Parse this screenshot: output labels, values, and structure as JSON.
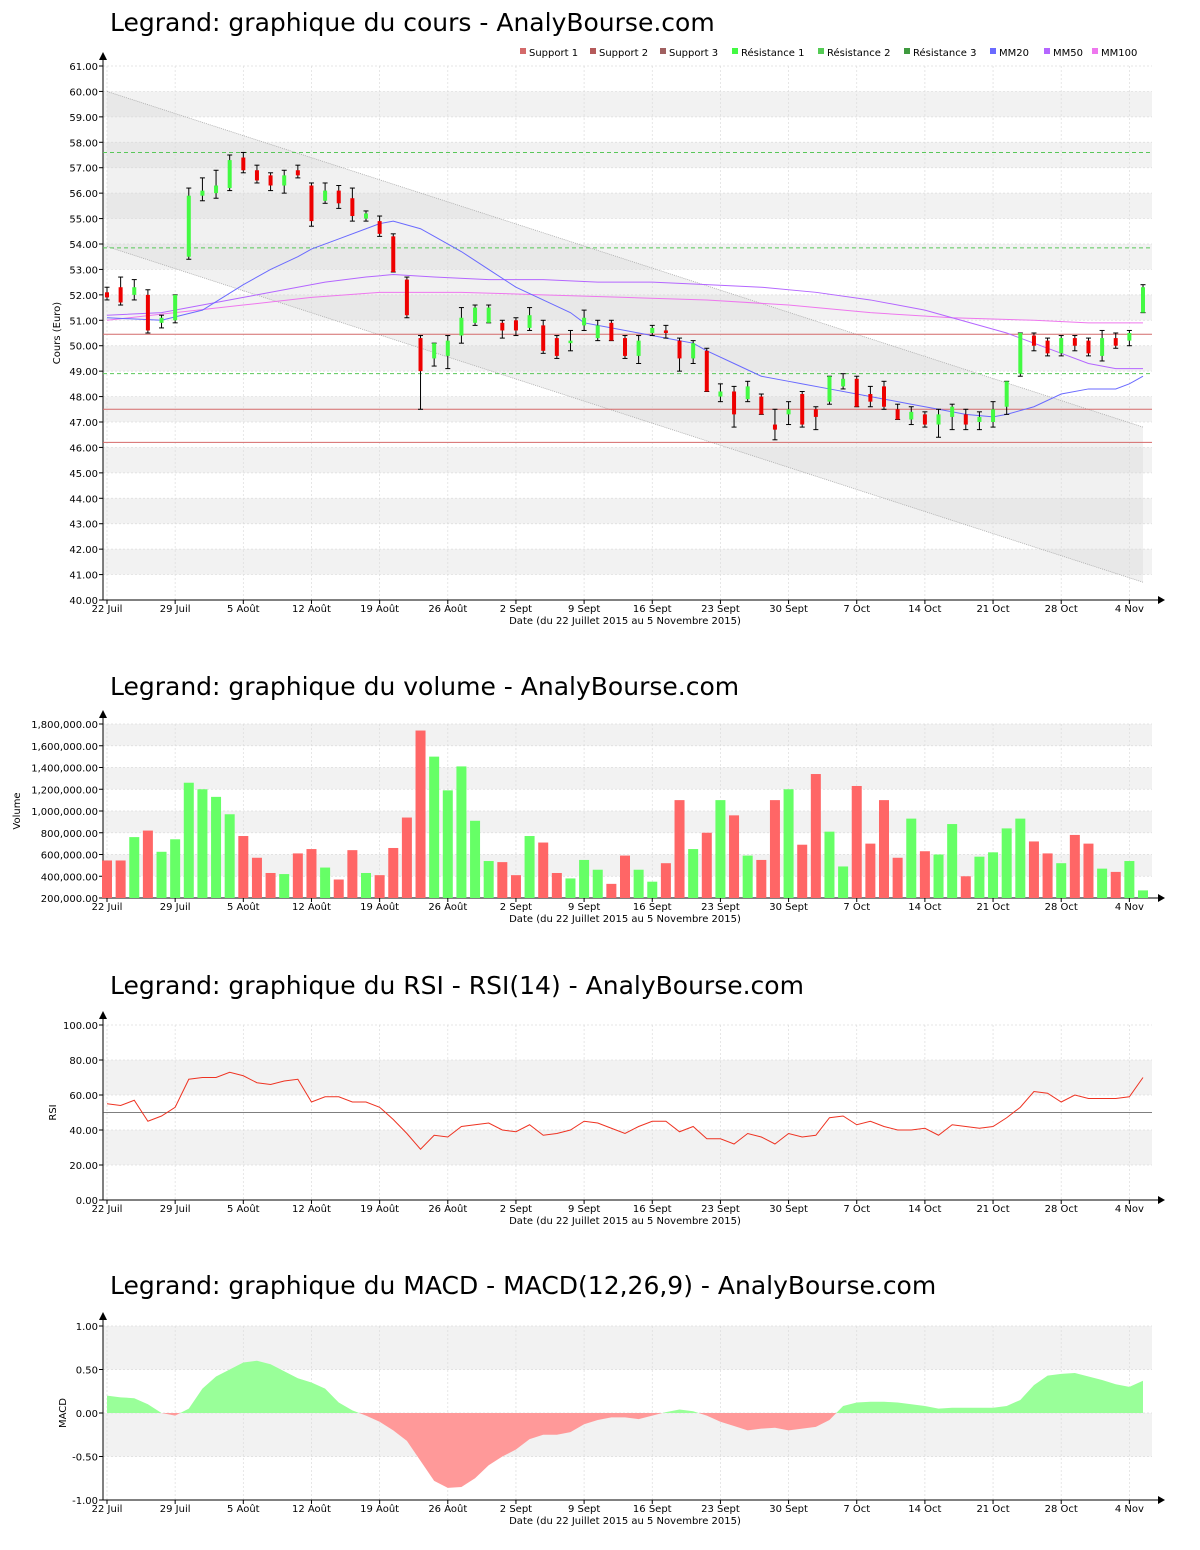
{
  "colors": {
    "up": "#43fa43",
    "down": "#ee0000",
    "vol_up": "#66ff66",
    "vol_down": "#ff6666",
    "band": "#f2f2f2",
    "grid": "#dcdcdc",
    "support": "#d46a6a",
    "resistance": "#59c759",
    "mm20": "#6a6aff",
    "mm50": "#b466ff",
    "mm100": "#ee77ee",
    "rsi": "#ee3322",
    "macd_pos": "#99ff99",
    "macd_neg": "#ff9999"
  },
  "shared": {
    "x_ticks": [
      "22 Juil",
      "29 Juil",
      "5 Août",
      "12 Août",
      "19 Août",
      "26 Août",
      "2 Sept",
      "9 Sept",
      "16 Sept",
      "23 Sept",
      "30 Sept",
      "7 Oct",
      "14 Oct",
      "21 Oct",
      "28 Oct",
      "4 Nov"
    ],
    "x_label": "Date (du 22 Juillet 2015 au 5 Novembre 2015)"
  },
  "titles": {
    "price": "Legrand: graphique du cours - AnalyBourse.com",
    "volume": "Legrand: graphique du volume - AnalyBourse.com",
    "rsi": "Legrand: graphique du RSI - RSI(14) - AnalyBourse.com",
    "macd": "Legrand: graphique du MACD - MACD(12,26,9) - AnalyBourse.com"
  },
  "chart_data": [
    {
      "id": "price",
      "type": "candlestick",
      "ylabel": "Cours (Euro)",
      "ylim": [
        40,
        61
      ],
      "y_ticks": [
        "40.00",
        "41.00",
        "42.00",
        "43.00",
        "44.00",
        "45.00",
        "46.00",
        "47.00",
        "48.00",
        "49.00",
        "50.00",
        "51.00",
        "52.00",
        "53.00",
        "54.00",
        "55.00",
        "56.00",
        "57.00",
        "58.00",
        "59.00",
        "60.00",
        "61.00"
      ],
      "legend": [
        "Support 1",
        "Support 2",
        "Support 3",
        "Résistance 1",
        "Résistance 2",
        "Résistance 3",
        "MM20",
        "MM50",
        "MM100"
      ],
      "support_levels": [
        50.45,
        47.5,
        46.2
      ],
      "resistance_levels": [
        48.9,
        53.85,
        57.6
      ],
      "ohlc": [
        [
          52.1,
          52.3,
          51.8,
          51.9
        ],
        [
          52.3,
          52.7,
          51.6,
          51.7
        ],
        [
          52.0,
          52.6,
          51.8,
          52.3
        ],
        [
          52.0,
          52.2,
          50.5,
          50.6
        ],
        [
          50.9,
          51.2,
          50.7,
          51.1
        ],
        [
          51.0,
          52.0,
          50.9,
          52.0
        ],
        [
          53.5,
          56.2,
          53.4,
          55.9
        ],
        [
          55.9,
          56.6,
          55.7,
          56.1
        ],
        [
          56.0,
          56.9,
          55.8,
          56.3
        ],
        [
          56.2,
          57.5,
          56.1,
          57.3
        ],
        [
          57.4,
          57.6,
          56.8,
          56.9
        ],
        [
          56.9,
          57.1,
          56.4,
          56.5
        ],
        [
          56.7,
          56.8,
          56.1,
          56.3
        ],
        [
          56.3,
          56.9,
          56.0,
          56.7
        ],
        [
          56.9,
          57.1,
          56.6,
          56.7
        ],
        [
          56.3,
          56.4,
          54.7,
          54.9
        ],
        [
          55.7,
          56.4,
          55.6,
          56.1
        ],
        [
          56.1,
          56.3,
          55.4,
          55.6
        ],
        [
          55.8,
          56.2,
          54.9,
          55.1
        ],
        [
          55.0,
          55.3,
          54.9,
          55.2
        ],
        [
          54.9,
          55.1,
          54.3,
          54.4
        ],
        [
          54.3,
          54.4,
          52.9,
          52.9
        ],
        [
          52.6,
          52.7,
          51.1,
          51.2
        ],
        [
          50.3,
          50.4,
          47.5,
          49.0
        ],
        [
          49.5,
          50.1,
          49.2,
          50.1
        ],
        [
          49.6,
          50.4,
          49.1,
          50.2
        ],
        [
          50.4,
          51.5,
          50.1,
          51.1
        ],
        [
          50.9,
          51.6,
          50.8,
          51.5
        ],
        [
          50.9,
          51.6,
          50.9,
          51.5
        ],
        [
          50.9,
          51.0,
          50.3,
          50.6
        ],
        [
          51.0,
          51.1,
          50.4,
          50.6
        ],
        [
          50.7,
          51.5,
          50.6,
          51.2
        ],
        [
          50.8,
          51.0,
          49.7,
          49.8
        ],
        [
          50.3,
          50.4,
          49.5,
          49.6
        ],
        [
          50.1,
          50.6,
          49.8,
          50.2
        ],
        [
          50.8,
          51.4,
          50.6,
          51.1
        ],
        [
          50.3,
          51.0,
          50.2,
          50.8
        ],
        [
          50.9,
          51.0,
          50.2,
          50.2
        ],
        [
          50.3,
          50.4,
          49.5,
          49.6
        ],
        [
          49.6,
          50.4,
          49.3,
          50.2
        ],
        [
          50.5,
          50.8,
          50.4,
          50.7
        ],
        [
          50.6,
          50.8,
          50.3,
          50.5
        ],
        [
          50.2,
          50.3,
          49.0,
          49.5
        ],
        [
          49.5,
          50.2,
          49.3,
          50.1
        ],
        [
          49.8,
          49.9,
          48.2,
          48.2
        ],
        [
          48.0,
          48.5,
          47.8,
          48.2
        ],
        [
          48.2,
          48.4,
          46.8,
          47.3
        ],
        [
          47.9,
          48.6,
          47.8,
          48.4
        ],
        [
          48.0,
          48.1,
          47.3,
          47.3
        ],
        [
          46.9,
          47.5,
          46.3,
          46.7
        ],
        [
          47.3,
          47.8,
          46.9,
          47.5
        ],
        [
          48.1,
          48.2,
          46.8,
          46.9
        ],
        [
          47.5,
          47.6,
          46.7,
          47.2
        ],
        [
          47.8,
          48.8,
          47.7,
          48.8
        ],
        [
          48.4,
          48.9,
          48.3,
          48.7
        ],
        [
          48.7,
          48.8,
          47.6,
          47.6
        ],
        [
          48.1,
          48.4,
          47.6,
          47.8
        ],
        [
          48.4,
          48.6,
          47.5,
          47.6
        ],
        [
          47.5,
          47.7,
          47.1,
          47.1
        ],
        [
          47.1,
          47.6,
          46.9,
          47.4
        ],
        [
          47.3,
          47.4,
          46.8,
          46.9
        ],
        [
          46.9,
          47.5,
          46.4,
          47.3
        ],
        [
          47.2,
          47.7,
          46.7,
          47.6
        ],
        [
          47.3,
          47.5,
          46.7,
          46.9
        ],
        [
          47.0,
          47.4,
          46.7,
          47.2
        ],
        [
          47.0,
          47.8,
          46.8,
          47.5
        ],
        [
          47.6,
          48.6,
          47.3,
          48.6
        ],
        [
          48.9,
          50.5,
          48.8,
          50.5
        ],
        [
          50.4,
          50.5,
          49.8,
          50.0
        ],
        [
          50.2,
          50.3,
          49.6,
          49.7
        ],
        [
          49.7,
          50.4,
          49.6,
          50.3
        ],
        [
          50.3,
          50.4,
          49.8,
          50.0
        ],
        [
          50.2,
          50.3,
          49.6,
          49.7
        ],
        [
          49.6,
          50.6,
          49.4,
          50.3
        ],
        [
          50.3,
          50.5,
          49.9,
          50.0
        ],
        [
          50.2,
          50.6,
          50.0,
          50.5
        ],
        [
          51.3,
          52.4,
          51.3,
          52.3
        ]
      ],
      "mm20": [
        [
          0,
          51.1
        ],
        [
          4,
          51.0
        ],
        [
          7,
          51.4
        ],
        [
          10,
          52.4
        ],
        [
          12,
          53.0
        ],
        [
          14,
          53.5
        ],
        [
          15,
          53.8
        ],
        [
          17,
          54.2
        ],
        [
          19,
          54.6
        ],
        [
          20,
          54.8
        ],
        [
          21,
          54.9
        ],
        [
          23,
          54.6
        ],
        [
          24,
          54.3
        ],
        [
          26,
          53.7
        ],
        [
          28,
          53.0
        ],
        [
          30,
          52.3
        ],
        [
          32,
          51.8
        ],
        [
          34,
          51.3
        ],
        [
          35,
          50.9
        ],
        [
          37,
          50.7
        ],
        [
          39,
          50.5
        ],
        [
          41,
          50.3
        ],
        [
          43,
          50.1
        ],
        [
          44,
          49.8
        ],
        [
          46,
          49.3
        ],
        [
          48,
          48.8
        ],
        [
          50,
          48.6
        ],
        [
          51,
          48.5
        ],
        [
          53,
          48.3
        ],
        [
          55,
          48.1
        ],
        [
          57,
          47.9
        ],
        [
          59,
          47.7
        ],
        [
          61,
          47.5
        ],
        [
          63,
          47.3
        ],
        [
          65,
          47.2
        ],
        [
          66,
          47.3
        ],
        [
          68,
          47.6
        ],
        [
          70,
          48.1
        ],
        [
          72,
          48.3
        ],
        [
          74,
          48.3
        ],
        [
          75,
          48.5
        ],
        [
          76,
          48.8
        ]
      ],
      "mm50": [
        [
          0,
          51.2
        ],
        [
          4,
          51.3
        ],
        [
          7,
          51.6
        ],
        [
          10,
          51.9
        ],
        [
          13,
          52.2
        ],
        [
          16,
          52.5
        ],
        [
          19,
          52.7
        ],
        [
          21,
          52.8
        ],
        [
          24,
          52.7
        ],
        [
          28,
          52.6
        ],
        [
          32,
          52.6
        ],
        [
          36,
          52.5
        ],
        [
          40,
          52.5
        ],
        [
          44,
          52.4
        ],
        [
          48,
          52.3
        ],
        [
          52,
          52.1
        ],
        [
          56,
          51.8
        ],
        [
          60,
          51.4
        ],
        [
          62,
          51.1
        ],
        [
          64,
          50.8
        ],
        [
          66,
          50.5
        ],
        [
          68,
          50.1
        ],
        [
          70,
          49.7
        ],
        [
          72,
          49.3
        ],
        [
          74,
          49.1
        ],
        [
          76,
          49.1
        ]
      ],
      "mm100": [
        [
          0,
          51.0
        ],
        [
          5,
          51.3
        ],
        [
          10,
          51.6
        ],
        [
          15,
          51.9
        ],
        [
          20,
          52.1
        ],
        [
          26,
          52.1
        ],
        [
          32,
          52.0
        ],
        [
          38,
          51.9
        ],
        [
          44,
          51.8
        ],
        [
          50,
          51.6
        ],
        [
          56,
          51.3
        ],
        [
          62,
          51.1
        ],
        [
          68,
          51.0
        ],
        [
          72,
          50.9
        ],
        [
          76,
          50.9
        ]
      ],
      "channel": {
        "upper": [
          [
            0,
            60.0
          ],
          [
            76,
            46.8
          ]
        ],
        "lower": [
          [
            0,
            53.9
          ],
          [
            76,
            40.7
          ]
        ]
      }
    },
    {
      "id": "volume",
      "type": "bar",
      "ylabel": "Volume",
      "ylim": [
        200000,
        1800000
      ],
      "y_ticks": [
        "200,000.00",
        "400,000.00",
        "600,000.00",
        "800,000.00",
        "1,000,000.00",
        "1,200,000.00",
        "1,400,000.00",
        "1,600,000.00",
        "1,800,000.00"
      ],
      "values": [
        545000,
        545000,
        760000,
        820000,
        625000,
        740000,
        1260000,
        1200000,
        1130000,
        970000,
        770000,
        570000,
        430000,
        420000,
        610000,
        650000,
        480000,
        370000,
        640000,
        430000,
        410000,
        660000,
        940000,
        1740000,
        1500000,
        1190000,
        1410000,
        910000,
        540000,
        530000,
        410000,
        770000,
        710000,
        430000,
        380000,
        550000,
        460000,
        330000,
        590000,
        460000,
        350000,
        520000,
        1100000,
        650000,
        800000,
        1100000,
        960000,
        590000,
        550000,
        1100000,
        1200000,
        690000,
        1340000,
        810000,
        490000,
        1230000,
        700000,
        1100000,
        570000,
        930000,
        630000,
        600000,
        880000,
        400000,
        580000,
        620000,
        840000,
        930000,
        720000,
        610000,
        520000,
        780000,
        700000,
        470000,
        440000,
        540000,
        270000
      ]
    },
    {
      "id": "rsi",
      "type": "line",
      "ylabel": "RSI",
      "ylim": [
        0,
        100
      ],
      "y_ticks": [
        "0.00",
        "20.00",
        "40.00",
        "60.00",
        "80.00",
        "100.00"
      ],
      "reference": 50,
      "values": [
        55,
        54,
        57,
        45,
        48,
        53,
        69,
        70,
        70,
        73,
        71,
        67,
        66,
        68,
        69,
        56,
        59,
        59,
        56,
        56,
        53,
        46,
        38,
        29,
        37,
        36,
        42,
        43,
        44,
        40,
        39,
        43,
        37,
        38,
        40,
        45,
        44,
        41,
        38,
        42,
        45,
        45,
        39,
        42,
        35,
        35,
        32,
        38,
        36,
        32,
        38,
        36,
        37,
        47,
        48,
        43,
        45,
        42,
        40,
        40,
        41,
        37,
        43,
        42,
        41,
        42,
        47,
        53,
        62,
        61,
        56,
        60,
        58,
        58,
        58,
        59,
        70
      ]
    },
    {
      "id": "macd",
      "type": "area",
      "ylabel": "MACD",
      "ylim": [
        -1,
        1
      ],
      "y_ticks": [
        "-1.00",
        "-0.50",
        "0.00",
        "0.50",
        "1.00"
      ],
      "values": [
        0.2,
        0.18,
        0.17,
        0.1,
        0.0,
        -0.03,
        0.05,
        0.28,
        0.42,
        0.5,
        0.58,
        0.6,
        0.56,
        0.48,
        0.4,
        0.35,
        0.28,
        0.12,
        0.03,
        -0.03,
        -0.1,
        -0.2,
        -0.32,
        -0.55,
        -0.78,
        -0.86,
        -0.85,
        -0.75,
        -0.6,
        -0.5,
        -0.42,
        -0.3,
        -0.25,
        -0.25,
        -0.22,
        -0.13,
        -0.08,
        -0.05,
        -0.05,
        -0.07,
        -0.03,
        0.01,
        0.04,
        0.02,
        -0.03,
        -0.1,
        -0.15,
        -0.2,
        -0.18,
        -0.17,
        -0.2,
        -0.18,
        -0.16,
        -0.08,
        0.08,
        0.12,
        0.13,
        0.13,
        0.12,
        0.1,
        0.08,
        0.05,
        0.06,
        0.06,
        0.06,
        0.06,
        0.08,
        0.15,
        0.32,
        0.43,
        0.45,
        0.46,
        0.42,
        0.38,
        0.33,
        0.3,
        0.37
      ]
    }
  ]
}
